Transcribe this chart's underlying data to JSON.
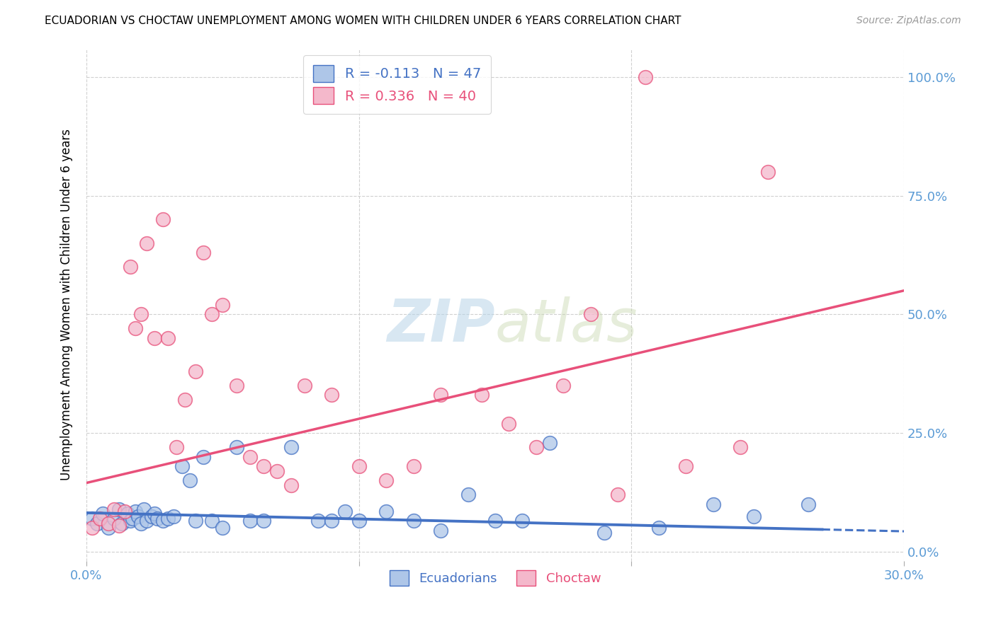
{
  "title": "ECUADORIAN VS CHOCTAW UNEMPLOYMENT AMONG WOMEN WITH CHILDREN UNDER 6 YEARS CORRELATION CHART",
  "source": "Source: ZipAtlas.com",
  "ylabel": "Unemployment Among Women with Children Under 6 years",
  "xlim": [
    0.0,
    0.3
  ],
  "ylim": [
    -0.02,
    1.06
  ],
  "ytick_values": [
    0.0,
    0.25,
    0.5,
    0.75,
    1.0
  ],
  "ecu_color": "#aec6e8",
  "choctaw_color": "#f4b8cb",
  "ecu_line_color": "#4472c4",
  "choctaw_line_color": "#e8507a",
  "ecu_R": -0.113,
  "ecu_N": 47,
  "choctaw_R": 0.336,
  "choctaw_N": 40,
  "background_color": "#ffffff",
  "grid_color": "#d0d0d0",
  "ecu_intercept": 0.082,
  "ecu_slope": -0.13,
  "cho_intercept": 0.145,
  "cho_slope": 1.35,
  "ecuadorians_x": [
    0.002,
    0.004,
    0.006,
    0.008,
    0.01,
    0.012,
    0.013,
    0.015,
    0.016,
    0.017,
    0.018,
    0.019,
    0.02,
    0.021,
    0.022,
    0.024,
    0.025,
    0.026,
    0.028,
    0.03,
    0.032,
    0.035,
    0.038,
    0.04,
    0.043,
    0.046,
    0.05,
    0.055,
    0.06,
    0.065,
    0.075,
    0.085,
    0.09,
    0.095,
    0.1,
    0.11,
    0.12,
    0.13,
    0.14,
    0.15,
    0.16,
    0.17,
    0.19,
    0.21,
    0.23,
    0.245,
    0.265
  ],
  "ecuadorians_y": [
    0.07,
    0.06,
    0.08,
    0.05,
    0.07,
    0.09,
    0.06,
    0.08,
    0.065,
    0.07,
    0.085,
    0.075,
    0.06,
    0.09,
    0.065,
    0.075,
    0.08,
    0.07,
    0.065,
    0.07,
    0.075,
    0.18,
    0.15,
    0.065,
    0.2,
    0.065,
    0.05,
    0.22,
    0.065,
    0.065,
    0.22,
    0.065,
    0.065,
    0.085,
    0.065,
    0.085,
    0.065,
    0.045,
    0.12,
    0.065,
    0.065,
    0.23,
    0.04,
    0.05,
    0.1,
    0.075,
    0.1
  ],
  "choctaw_x": [
    0.002,
    0.005,
    0.008,
    0.01,
    0.012,
    0.014,
    0.016,
    0.018,
    0.02,
    0.022,
    0.025,
    0.028,
    0.03,
    0.033,
    0.036,
    0.04,
    0.043,
    0.046,
    0.05,
    0.055,
    0.06,
    0.065,
    0.07,
    0.075,
    0.08,
    0.09,
    0.1,
    0.11,
    0.12,
    0.13,
    0.145,
    0.155,
    0.165,
    0.175,
    0.185,
    0.195,
    0.205,
    0.22,
    0.24,
    0.25
  ],
  "choctaw_y": [
    0.05,
    0.07,
    0.06,
    0.09,
    0.055,
    0.085,
    0.6,
    0.47,
    0.5,
    0.65,
    0.45,
    0.7,
    0.45,
    0.22,
    0.32,
    0.38,
    0.63,
    0.5,
    0.52,
    0.35,
    0.2,
    0.18,
    0.17,
    0.14,
    0.35,
    0.33,
    0.18,
    0.15,
    0.18,
    0.33,
    0.33,
    0.27,
    0.22,
    0.35,
    0.5,
    0.12,
    1.0,
    0.18,
    0.22,
    0.8
  ]
}
